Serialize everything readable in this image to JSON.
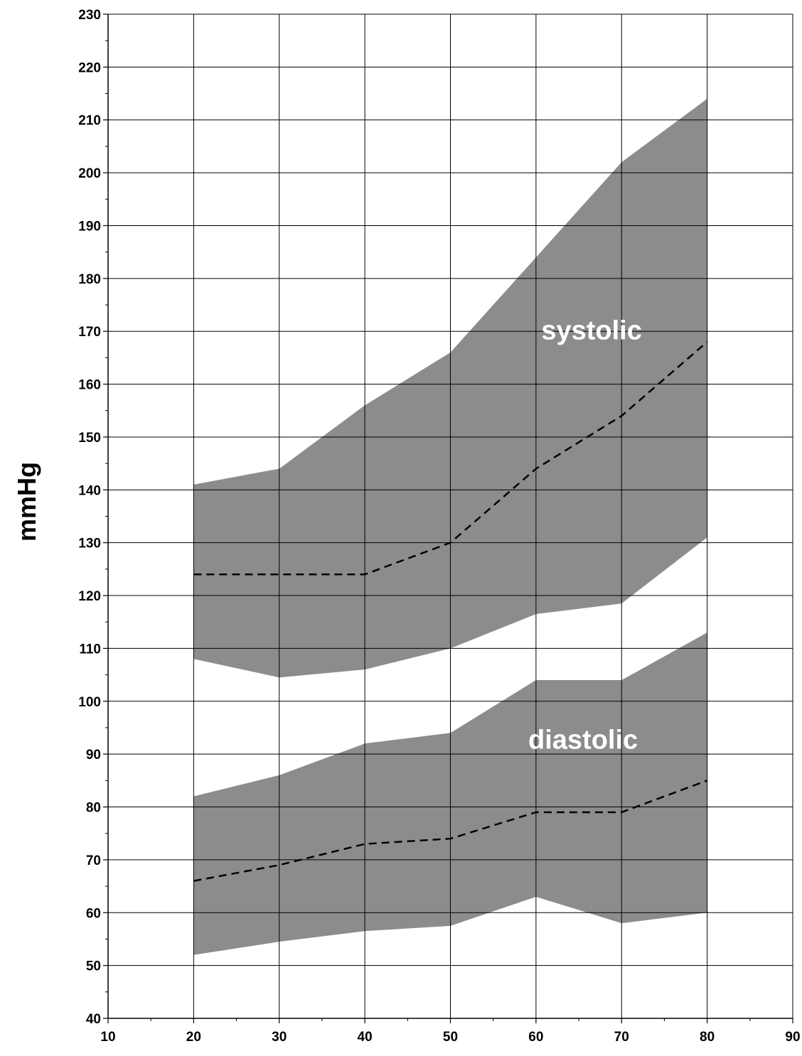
{
  "chart_data": {
    "type": "area",
    "title": "",
    "xlabel": "",
    "ylabel": "mmHg",
    "xlim": [
      10,
      90
    ],
    "ylim": [
      40,
      230
    ],
    "x_ticks": [
      "10",
      "20",
      "30",
      "40",
      "50",
      "60",
      "70",
      "80",
      "90"
    ],
    "y_ticks": [
      "40",
      "50",
      "60",
      "70",
      "80",
      "90",
      "100",
      "110",
      "120",
      "130",
      "140",
      "150",
      "160",
      "170",
      "180",
      "190",
      "200",
      "210",
      "220",
      "230"
    ],
    "grid": true,
    "band_color": "#8c8c8c",
    "bands": [
      {
        "label": "systolic",
        "x": [
          20,
          30,
          40,
          50,
          60,
          70,
          80
        ],
        "upper": [
          141,
          144,
          156,
          166,
          184,
          202,
          214
        ],
        "lower": [
          108,
          104.5,
          106,
          110,
          116.5,
          118.5,
          131
        ],
        "median": [
          124,
          124,
          124,
          130,
          144,
          154,
          168
        ]
      },
      {
        "label": "diastolic",
        "x": [
          20,
          30,
          40,
          50,
          60,
          70,
          80
        ],
        "upper": [
          82,
          86,
          92,
          94,
          104,
          104,
          113
        ],
        "lower": [
          52,
          54.5,
          56.5,
          57.5,
          63,
          58,
          60
        ],
        "median": [
          66,
          69,
          73,
          74,
          79,
          79,
          85
        ]
      }
    ]
  }
}
